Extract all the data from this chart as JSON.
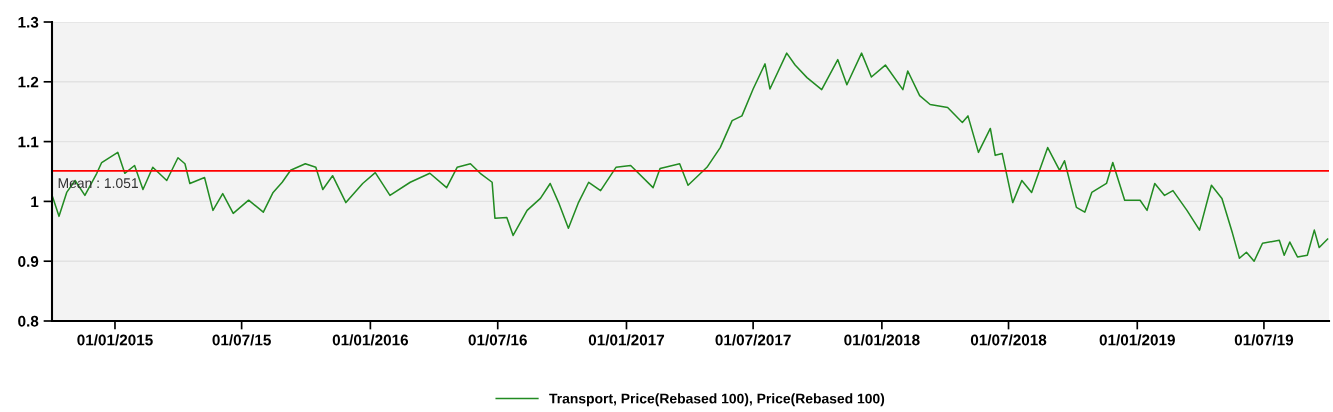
{
  "chart_data": {
    "type": "line",
    "x": [
      "2014-10-04",
      "2014-10-13",
      "2014-10-24",
      "2014-11-05",
      "2014-11-19",
      "2014-12-06",
      "2014-12-13",
      "2015-01-05",
      "2015-01-15",
      "2015-01-29",
      "2015-02-10",
      "2015-02-24",
      "2015-03-16",
      "2015-04-01",
      "2015-04-11",
      "2015-04-18",
      "2015-05-09",
      "2015-05-21",
      "2015-06-04",
      "2015-06-19",
      "2015-07-11",
      "2015-08-01",
      "2015-08-15",
      "2015-08-28",
      "2015-09-09",
      "2015-09-30",
      "2015-10-15",
      "2015-10-25",
      "2015-11-08",
      "2015-11-27",
      "2015-12-21",
      "2016-01-08",
      "2016-01-29",
      "2016-02-27",
      "2016-03-26",
      "2016-04-19",
      "2016-05-04",
      "2016-05-23",
      "2016-06-06",
      "2016-06-23",
      "2016-06-27",
      "2016-07-14",
      "2016-07-23",
      "2016-08-12",
      "2016-08-31",
      "2016-09-14",
      "2016-09-26",
      "2016-10-10",
      "2016-10-24",
      "2016-11-08",
      "2016-11-25",
      "2016-12-17",
      "2017-01-07",
      "2017-02-08",
      "2017-02-18",
      "2017-03-18",
      "2017-03-30",
      "2017-04-26",
      "2017-05-15",
      "2017-06-01",
      "2017-06-15",
      "2017-07-01",
      "2017-07-18",
      "2017-07-25",
      "2017-08-18",
      "2017-08-30",
      "2017-09-16",
      "2017-10-07",
      "2017-10-30",
      "2017-11-12",
      "2017-12-03",
      "2017-12-17",
      "2018-01-06",
      "2018-01-31",
      "2018-02-07",
      "2018-02-24",
      "2018-03-11",
      "2018-04-05",
      "2018-04-26",
      "2018-05-04",
      "2018-05-19",
      "2018-06-05",
      "2018-06-12",
      "2018-06-22",
      "2018-07-07",
      "2018-07-20",
      "2018-08-03",
      "2018-08-26",
      "2018-09-12",
      "2018-09-19",
      "2018-10-06",
      "2018-10-18",
      "2018-10-28",
      "2018-11-18",
      "2018-11-27",
      "2018-12-14",
      "2019-01-05",
      "2019-01-15",
      "2019-01-26",
      "2019-02-09",
      "2019-02-21",
      "2019-03-13",
      "2019-03-31",
      "2019-04-17",
      "2019-05-02",
      "2019-05-17",
      "2019-05-27",
      "2019-06-06",
      "2019-06-17",
      "2019-06-29",
      "2019-07-23",
      "2019-07-30",
      "2019-08-07",
      "2019-08-18",
      "2019-09-01",
      "2019-09-11",
      "2019-09-18",
      "2019-09-30"
    ],
    "series": [
      {
        "name": "Transport, Price(Rebased 100), Price(Rebased 100)",
        "color": "#228b22",
        "values": [
          1.007,
          0.975,
          1.015,
          1.035,
          1.01,
          1.047,
          1.065,
          1.082,
          1.047,
          1.06,
          1.02,
          1.057,
          1.035,
          1.073,
          1.063,
          1.03,
          1.04,
          0.985,
          1.013,
          0.98,
          1.002,
          0.982,
          1.015,
          1.032,
          1.052,
          1.063,
          1.057,
          1.02,
          1.043,
          0.998,
          1.03,
          1.048,
          1.01,
          1.032,
          1.047,
          1.023,
          1.057,
          1.063,
          1.047,
          1.032,
          0.972,
          0.973,
          0.943,
          0.985,
          1.005,
          1.03,
          0.998,
          0.955,
          0.997,
          1.032,
          1.018,
          1.057,
          1.06,
          1.023,
          1.055,
          1.063,
          1.027,
          1.057,
          1.09,
          1.135,
          1.143,
          1.188,
          1.23,
          1.188,
          1.248,
          1.228,
          1.207,
          1.187,
          1.237,
          1.195,
          1.248,
          1.208,
          1.228,
          1.187,
          1.218,
          1.177,
          1.162,
          1.157,
          1.132,
          1.143,
          1.082,
          1.122,
          1.077,
          1.08,
          0.998,
          1.035,
          1.015,
          1.09,
          1.052,
          1.068,
          0.99,
          0.982,
          1.015,
          1.03,
          1.065,
          1.002,
          1.002,
          0.985,
          1.03,
          1.01,
          1.018,
          0.985,
          0.952,
          1.027,
          1.005,
          0.947,
          0.905,
          0.915,
          0.9,
          0.93,
          0.935,
          0.91,
          0.932,
          0.907,
          0.91,
          0.952,
          0.923,
          0.937
        ]
      }
    ],
    "xlim": [
      "2014-10-03",
      "2019-10-02"
    ],
    "xticks": [
      {
        "value": "2015-01-01",
        "label": "01/01/2015"
      },
      {
        "value": "2015-07-01",
        "label": "01/07/15"
      },
      {
        "value": "2016-01-01",
        "label": "01/01/2016"
      },
      {
        "value": "2016-07-01",
        "label": "01/07/16"
      },
      {
        "value": "2017-01-01",
        "label": "01/01/2017"
      },
      {
        "value": "2017-07-01",
        "label": "01/07/2017"
      },
      {
        "value": "2018-01-01",
        "label": "01/01/2018"
      },
      {
        "value": "2018-07-01",
        "label": "01/07/2018"
      },
      {
        "value": "2019-01-01",
        "label": "01/01/2019"
      },
      {
        "value": "2019-07-01",
        "label": "01/07/19"
      }
    ],
    "ylim": [
      0.8,
      1.3
    ],
    "yticks": [
      {
        "value": 0.8,
        "label": "0.8"
      },
      {
        "value": 0.9,
        "label": "0.9"
      },
      {
        "value": 1,
        "label": "1"
      },
      {
        "value": 1.1,
        "label": "1.1"
      },
      {
        "value": 1.2,
        "label": "1.2"
      },
      {
        "value": 1.3,
        "label": "1.3"
      }
    ],
    "ref_lines": [
      {
        "axis": "y",
        "value": 1.051,
        "label": "Mean : 1.051",
        "color": "#ff0000"
      }
    ],
    "grid": "y",
    "legend": "bottom",
    "marker": "none",
    "line_style": "solid"
  }
}
